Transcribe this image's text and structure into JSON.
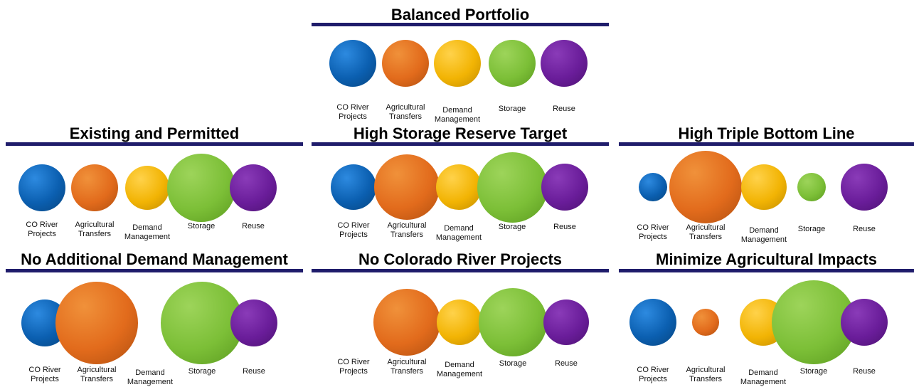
{
  "categories": [
    {
      "key": "co_river",
      "label": "CO River Projects",
      "color": "#0b5fb0"
    },
    {
      "key": "ag_transfers",
      "label": "Agricultural Transfers",
      "color": "#e26b1c"
    },
    {
      "key": "demand_mgmt",
      "label": "Demand Management",
      "color": "#f2b404"
    },
    {
      "key": "storage",
      "label": "Storage",
      "color": "#7cbf37"
    },
    {
      "key": "reuse",
      "label": "Reuse",
      "color": "#6a1d9a"
    }
  ],
  "panels": [
    {
      "id": "balanced",
      "title": "Balanced Portfolio",
      "levels": [
        1.0,
        1.0,
        1.0,
        1.0,
        1.0
      ]
    },
    {
      "id": "existing",
      "title": "Existing and Permitted",
      "levels": [
        1.0,
        1.0,
        0.95,
        1.45,
        1.0
      ]
    },
    {
      "id": "high-storage",
      "title": "High Storage Reserve Target",
      "levels": [
        0.97,
        1.4,
        0.97,
        1.5,
        1.0
      ]
    },
    {
      "id": "high-tbl",
      "title": "High Triple Bottom Line",
      "levels": [
        0.62,
        1.55,
        0.97,
        0.62,
        1.0
      ]
    },
    {
      "id": "no-demand",
      "title": "No Additional Demand Management",
      "levels": [
        1.0,
        1.75,
        0,
        1.75,
        1.0
      ]
    },
    {
      "id": "no-colorado",
      "title": "No Colorado River Projects",
      "levels": [
        0,
        1.42,
        0.97,
        1.45,
        0.97
      ]
    },
    {
      "id": "min-ag",
      "title": "Minimize Agricultural Impacts",
      "levels": [
        1.0,
        0.57,
        1.0,
        1.8,
        1.0
      ]
    }
  ]
}
